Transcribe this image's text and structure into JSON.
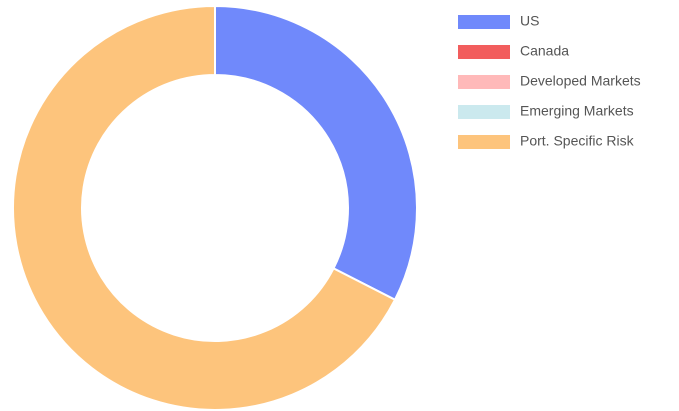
{
  "chart_data": {
    "type": "doughnut",
    "categories": [
      "US",
      "Canada",
      "Developed Markets",
      "Emerging Markets",
      "Port. Specific Risk"
    ],
    "values": [
      32.5,
      0,
      0,
      0,
      67.5
    ],
    "colors": [
      "#7089fb",
      "#f25d5d",
      "#ffb9b9",
      "#cbe9ee",
      "#fdc47c"
    ],
    "legend": "right"
  }
}
